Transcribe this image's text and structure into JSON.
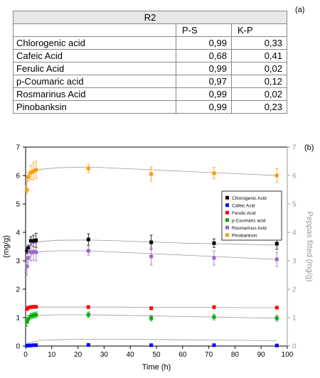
{
  "table": {
    "title": "R2",
    "panel_label": "(a)",
    "col_headers": [
      "P-S",
      "K-P"
    ],
    "rows": [
      {
        "name": "Chlorogenic acid",
        "ps": "0,99",
        "kp": "0,33"
      },
      {
        "name": "Cafeic Acid",
        "ps": "0,68",
        "kp": "0,41"
      },
      {
        "name": "Ferulic Acid",
        "ps": "0,99",
        "kp": "0,02"
      },
      {
        "name": "p-Coumaric acid",
        "ps": "0,97",
        "kp": "0,12"
      },
      {
        "name": "Rosmarinus Acid",
        "ps": "0,99",
        "kp": "0,02"
      },
      {
        "name": "Pinobanksin",
        "ps": "0,99",
        "kp": "0,23"
      }
    ]
  },
  "chart_data": {
    "type": "scatter",
    "panel_label": "(b)",
    "xlabel": "Time (h)",
    "ylabel": "(mg/g)",
    "y2label": "Peppas fitted (mg/g)",
    "xlim": [
      0,
      100
    ],
    "ylim": [
      0,
      7
    ],
    "y2lim": [
      0,
      7
    ],
    "xticks": [
      0,
      10,
      20,
      30,
      40,
      50,
      60,
      70,
      80,
      90,
      100
    ],
    "yticks": [
      0,
      1,
      2,
      3,
      4,
      5,
      6,
      7
    ],
    "legend_position": "right",
    "series": [
      {
        "name": "Chlorogenic Acid",
        "color": "#000000",
        "x": [
          0.5,
          1,
          2,
          3,
          4,
          24,
          48,
          72,
          96
        ],
        "y": [
          3.35,
          3.45,
          3.7,
          3.7,
          3.72,
          3.75,
          3.65,
          3.62,
          3.6
        ],
        "err": [
          0.1,
          0.1,
          0.15,
          0.2,
          0.25,
          0.2,
          0.25,
          0.15,
          0.2
        ],
        "fit_x": [
          0,
          1,
          3,
          6,
          12,
          24,
          36,
          48,
          60,
          72,
          84,
          96
        ],
        "fit_y": [
          3.35,
          3.5,
          3.62,
          3.68,
          3.72,
          3.73,
          3.7,
          3.66,
          3.62,
          3.6,
          3.58,
          3.55
        ]
      },
      {
        "name": "Cafeic Acid",
        "color": "#0000ff",
        "x": [
          0.5,
          1,
          2,
          3,
          4,
          24,
          48,
          72,
          96
        ],
        "y": [
          0.01,
          0.02,
          0.02,
          0.03,
          0.03,
          0.04,
          0.03,
          0.03,
          0.02
        ],
        "err": [
          0.01,
          0.01,
          0.01,
          0.01,
          0.01,
          0.01,
          0.01,
          0.01,
          0.01
        ],
        "fit_x": [
          0,
          1,
          3,
          6,
          12,
          24,
          36,
          48,
          60,
          72,
          84,
          96
        ],
        "fit_y": [
          0.02,
          0.1,
          0.15,
          0.2,
          0.22,
          0.24,
          0.24,
          0.23,
          0.22,
          0.21,
          0.2,
          0.19
        ]
      },
      {
        "name": "Ferulic Acid",
        "color": "#ff0000",
        "x": [
          0.5,
          1,
          2,
          3,
          4,
          24,
          48,
          72,
          96
        ],
        "y": [
          1.3,
          1.35,
          1.37,
          1.38,
          1.38,
          1.37,
          1.33,
          1.37,
          1.35
        ],
        "err": [
          0.05,
          0.05,
          0.05,
          0.05,
          0.05,
          0.05,
          0.05,
          0.05,
          0.05
        ],
        "fit_x": [
          0,
          1,
          3,
          6,
          12,
          24,
          36,
          48,
          60,
          72,
          84,
          96
        ],
        "fit_y": [
          1.3,
          1.34,
          1.36,
          1.37,
          1.37,
          1.37,
          1.37,
          1.36,
          1.36,
          1.36,
          1.35,
          1.35
        ]
      },
      {
        "name": "p-Coumaric acid",
        "color": "#00aa00",
        "x": [
          0.5,
          1,
          2,
          3,
          4,
          24,
          48,
          72,
          96
        ],
        "y": [
          0.85,
          0.95,
          1.05,
          1.08,
          1.1,
          1.1,
          0.98,
          1.02,
          0.98
        ],
        "err": [
          0.15,
          0.12,
          0.1,
          0.1,
          0.1,
          0.1,
          0.1,
          0.1,
          0.1
        ],
        "fit_x": [
          0,
          1,
          3,
          6,
          12,
          24,
          36,
          48,
          60,
          72,
          84,
          96
        ],
        "fit_y": [
          0.9,
          0.98,
          1.05,
          1.08,
          1.1,
          1.1,
          1.08,
          1.06,
          1.04,
          1.02,
          1.0,
          0.98
        ]
      },
      {
        "name": "Rosmarinus Acid",
        "color": "#9966cc",
        "x": [
          0.5,
          1,
          2,
          3,
          4,
          24,
          48,
          72,
          96
        ],
        "y": [
          2.8,
          3.1,
          3.3,
          3.32,
          3.3,
          3.35,
          3.15,
          3.1,
          3.05
        ],
        "err": [
          0.3,
          0.3,
          0.3,
          0.3,
          0.3,
          0.15,
          0.3,
          0.25,
          0.25
        ],
        "fit_x": [
          0,
          1,
          3,
          6,
          12,
          24,
          36,
          48,
          60,
          72,
          84,
          96
        ],
        "fit_y": [
          2.9,
          3.1,
          3.25,
          3.32,
          3.35,
          3.35,
          3.3,
          3.25,
          3.2,
          3.15,
          3.1,
          3.05
        ]
      },
      {
        "name": "Pinobanksin",
        "color": "#ff9900",
        "x": [
          0.5,
          1,
          2,
          3,
          4,
          24,
          48,
          72,
          96
        ],
        "y": [
          5.5,
          5.95,
          6.1,
          6.15,
          6.2,
          6.25,
          6.05,
          6.08,
          6.0
        ],
        "err": [
          0.15,
          0.15,
          0.25,
          0.3,
          0.3,
          0.15,
          0.25,
          0.2,
          0.25
        ],
        "fit_x": [
          0,
          1,
          3,
          6,
          12,
          24,
          36,
          48,
          60,
          72,
          84,
          96
        ],
        "fit_y": [
          5.6,
          6.0,
          6.15,
          6.22,
          6.27,
          6.3,
          6.25,
          6.2,
          6.15,
          6.1,
          6.05,
          6.0
        ]
      }
    ]
  }
}
